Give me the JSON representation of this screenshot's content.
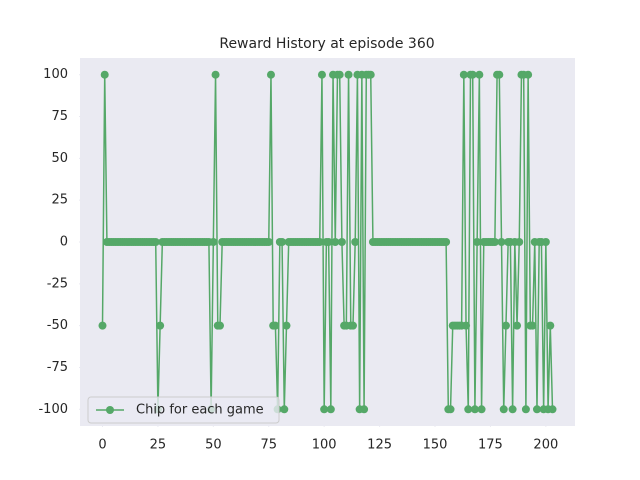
{
  "chart_data": {
    "type": "line",
    "title": "Reward History at episode 360",
    "series": [
      {
        "name": "Chip for each game",
        "color": "#55a868",
        "values": [
          -50,
          100,
          0,
          0,
          0,
          0,
          0,
          0,
          0,
          0,
          0,
          0,
          0,
          0,
          0,
          0,
          0,
          0,
          0,
          0,
          0,
          0,
          0,
          0,
          0,
          -100,
          -50,
          0,
          0,
          0,
          0,
          0,
          0,
          0,
          0,
          0,
          0,
          0,
          0,
          0,
          0,
          0,
          0,
          0,
          0,
          0,
          0,
          0,
          0,
          -100,
          0,
          100,
          -50,
          -50,
          0,
          0,
          0,
          0,
          0,
          0,
          0,
          0,
          0,
          0,
          0,
          0,
          0,
          0,
          0,
          0,
          0,
          0,
          0,
          0,
          0,
          0,
          100,
          -50,
          -50,
          -100,
          0,
          0,
          -100,
          -50,
          0,
          0,
          0,
          0,
          0,
          0,
          0,
          0,
          0,
          0,
          0,
          0,
          0,
          0,
          0,
          100,
          -100,
          0,
          0,
          -100,
          100,
          0,
          100,
          100,
          0,
          -50,
          -50,
          100,
          -50,
          -50,
          0,
          100,
          -100,
          100,
          -100,
          100,
          100,
          100,
          0,
          0,
          0,
          0,
          0,
          0,
          0,
          0,
          0,
          0,
          0,
          0,
          0,
          0,
          0,
          0,
          0,
          0,
          0,
          0,
          0,
          0,
          0,
          0,
          0,
          0,
          0,
          0,
          0,
          0,
          0,
          0,
          0,
          0,
          -100,
          -100,
          -50,
          -50,
          -50,
          -50,
          -50,
          100,
          -50,
          -100,
          100,
          100,
          -100,
          0,
          100,
          -100,
          0,
          0,
          0,
          0,
          0,
          0,
          100,
          100,
          0,
          -100,
          -50,
          0,
          0,
          -100,
          0,
          -50,
          0,
          100,
          100,
          -100,
          100,
          -50,
          -50,
          0,
          -100,
          0,
          0,
          -100,
          0,
          -100,
          -50,
          -100
        ]
      }
    ],
    "xlim": [
      -10.15,
      213.15
    ],
    "xticks": [
      0,
      25,
      50,
      75,
      100,
      125,
      150,
      175,
      200
    ],
    "ylim": [
      -110,
      110
    ],
    "yticks": [
      -100,
      -75,
      -50,
      -25,
      0,
      25,
      50,
      75,
      100
    ],
    "grid": false,
    "legend": "lower left"
  }
}
